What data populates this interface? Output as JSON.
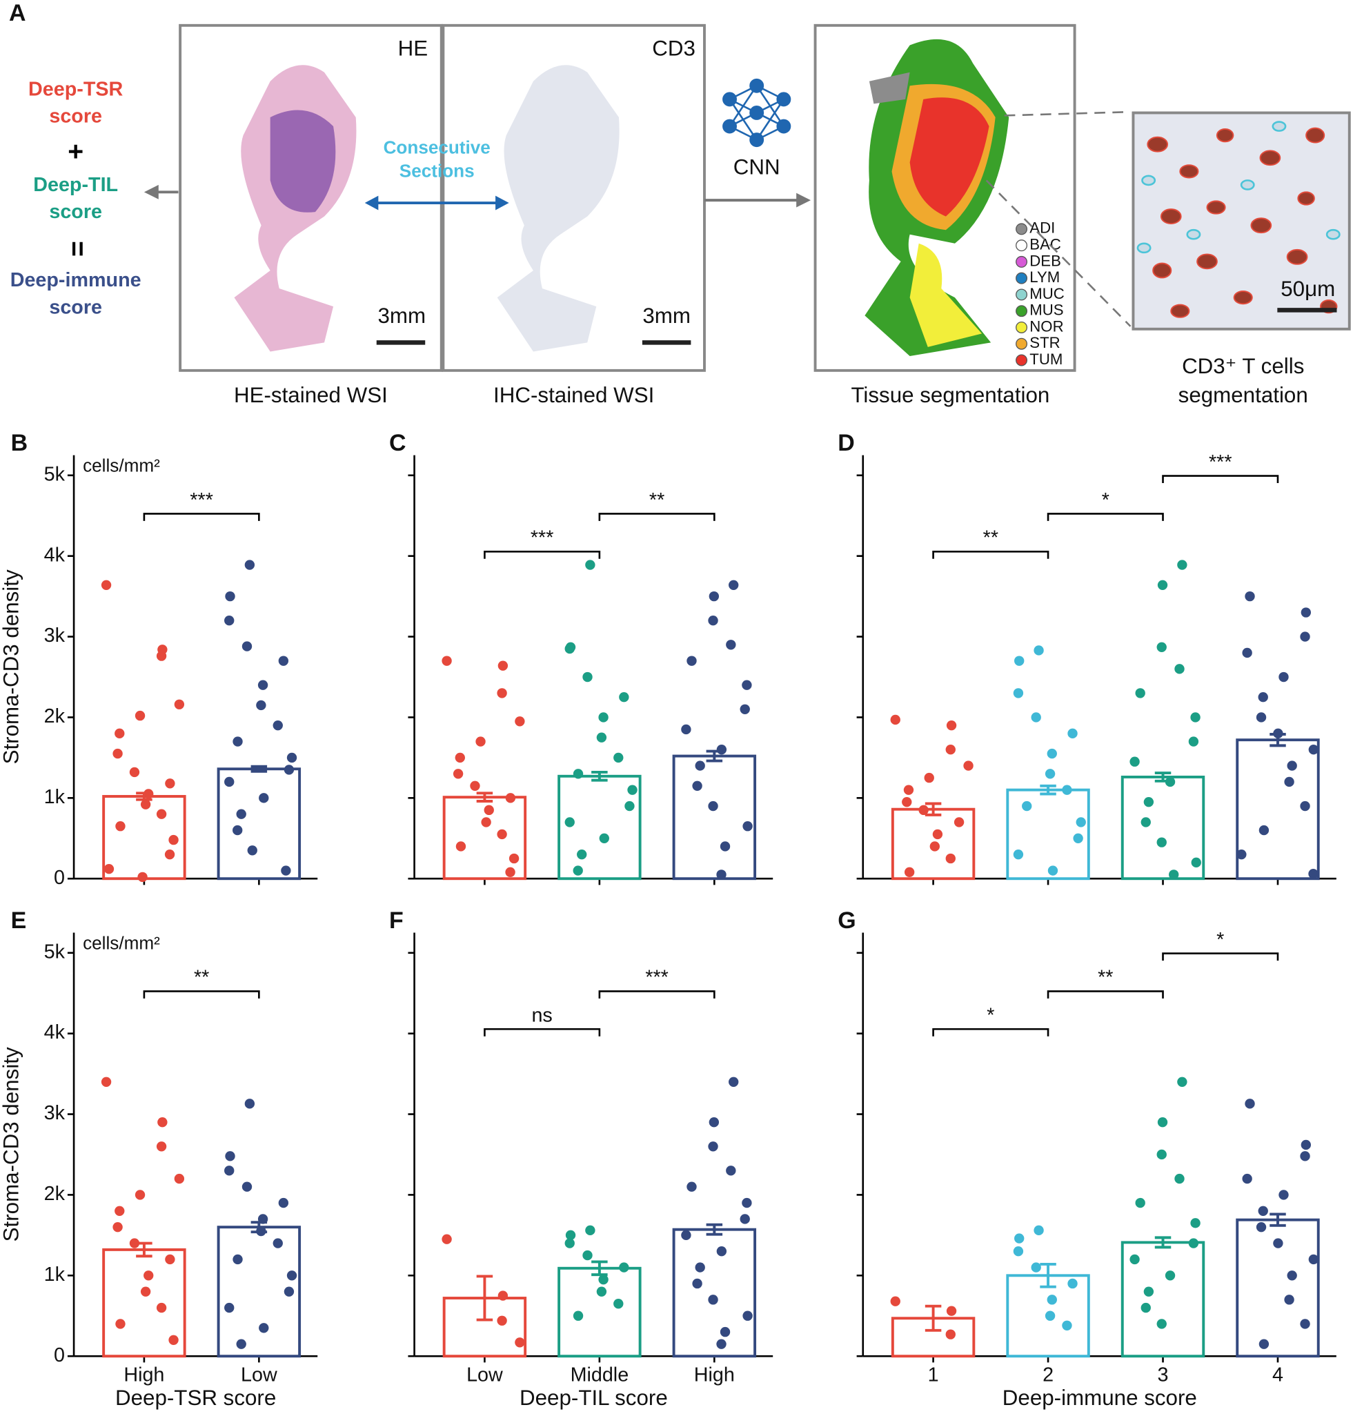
{
  "panel_a": {
    "letter": "A",
    "score_lines": [
      {
        "lines": [
          "Deep-TSR",
          "score"
        ],
        "color": "#e5483b"
      },
      {
        "lines": [
          "+"
        ],
        "color": "#000000"
      },
      {
        "lines": [
          "Deep-TIL",
          "score"
        ],
        "color": "#1b9e85"
      },
      {
        "lines": [
          "="
        ],
        "color": "#000000"
      },
      {
        "lines": [
          "Deep-immune",
          "score"
        ],
        "color": "#3a4f8a"
      }
    ],
    "he_label": "HE",
    "cd3_label": "CD3",
    "scale_he": "3mm",
    "scale_cd3": "3mm",
    "consecutive": [
      "Consecutive",
      "Sections"
    ],
    "cnn": "CNN",
    "legend": [
      {
        "name": "ADI",
        "color": "#8c8c8c"
      },
      {
        "name": "BAC",
        "color": "#ffffff"
      },
      {
        "name": "DEB",
        "color": "#d65ad6"
      },
      {
        "name": "LYM",
        "color": "#1f7fc0"
      },
      {
        "name": "MUC",
        "color": "#8fd3cf"
      },
      {
        "name": "MUS",
        "color": "#3aa12a"
      },
      {
        "name": "NOR",
        "color": "#f2ee3a"
      },
      {
        "name": "STR",
        "color": "#f0a92e"
      },
      {
        "name": "TUM",
        "color": "#e8332b"
      }
    ],
    "scale_cells": "50μm",
    "captions": [
      "HE-stained WSI",
      "IHC-stained WSI",
      "Tissue segmentation"
    ],
    "cell_caption": [
      "CD3⁺ T cells",
      "segmentation"
    ]
  },
  "chart_data": [
    {
      "type": "bar",
      "label": "B",
      "categories": [
        null,
        null
      ],
      "values": [
        1020,
        1360
      ],
      "errors": [
        40,
        30
      ],
      "colors": [
        "#e5483b",
        "#34497f"
      ],
      "points": [
        [
          3640,
          2840,
          2760,
          2160,
          2020,
          1800,
          1550,
          1320,
          1180,
          1050,
          920,
          800,
          650,
          480,
          300,
          120,
          20
        ],
        [
          3890,
          3500,
          3200,
          2880,
          2700,
          2400,
          2150,
          1900,
          1700,
          1500,
          1350,
          1200,
          1000,
          800,
          600,
          350,
          100
        ]
      ],
      "significance": [
        "***"
      ],
      "ylim": [
        0,
        5250
      ],
      "tick_labels": true,
      "yticks": [
        0,
        {
          "value": 1000,
          "label": "1k"
        },
        {
          "value": 2000,
          "label": "2k"
        },
        {
          "value": 3000,
          "label": "3k"
        },
        {
          "value": 4000,
          "label": "4k"
        },
        {
          "value": 5000,
          "label": "5k"
        }
      ],
      "ylabel": "Stroma-CD3 density",
      "unit": "cells/mm²"
    },
    {
      "type": "bar",
      "label": "C",
      "categories": [
        null,
        null,
        null
      ],
      "values": [
        1010,
        1270,
        1520
      ],
      "errors": [
        50,
        50,
        60
      ],
      "colors": [
        "#e5483b",
        "#1b9e85",
        "#34497f"
      ],
      "points": [
        [
          2700,
          2640,
          2300,
          1950,
          1700,
          1500,
          1300,
          1150,
          1000,
          850,
          700,
          550,
          400,
          250,
          80
        ],
        [
          3890,
          2870,
          2850,
          2500,
          2250,
          2000,
          1750,
          1500,
          1300,
          1100,
          900,
          700,
          500,
          300,
          100
        ],
        [
          3640,
          3500,
          3200,
          2900,
          2700,
          2400,
          2100,
          1850,
          1600,
          1400,
          1150,
          900,
          650,
          400,
          50
        ]
      ],
      "significance": [
        "***",
        "**"
      ],
      "ylim": [
        0,
        5250
      ],
      "tick_labels": false,
      "yticks": [
        0,
        1000,
        2000,
        3000,
        4000,
        5000
      ]
    },
    {
      "type": "bar",
      "label": "D",
      "categories": [
        null,
        null,
        null,
        null
      ],
      "values": [
        860,
        1100,
        1260,
        1720
      ],
      "errors": [
        70,
        50,
        50,
        70
      ],
      "colors": [
        "#e5483b",
        "#3fb8d6",
        "#1b9e85",
        "#34497f"
      ],
      "points": [
        [
          1970,
          1900,
          1600,
          1400,
          1250,
          1100,
          950,
          850,
          700,
          550,
          400,
          250,
          80
        ],
        [
          2830,
          2700,
          2300,
          2000,
          1800,
          1550,
          1300,
          1100,
          900,
          700,
          500,
          300,
          100
        ],
        [
          3890,
          3640,
          2870,
          2600,
          2300,
          2000,
          1700,
          1450,
          1200,
          950,
          700,
          450,
          200,
          50
        ],
        [
          3500,
          3300,
          3000,
          2800,
          2500,
          2250,
          2000,
          1800,
          1600,
          1400,
          1200,
          900,
          600,
          300,
          60
        ]
      ],
      "significance": [
        "**",
        "*",
        "***"
      ],
      "ylim": [
        0,
        5250
      ],
      "tick_labels": false,
      "yticks": [
        0,
        1000,
        2000,
        3000,
        4000,
        5000
      ]
    },
    {
      "type": "bar",
      "label": "E",
      "categories": [
        "High",
        "Low"
      ],
      "values": [
        1320,
        1600
      ],
      "errors": [
        80,
        60
      ],
      "colors": [
        "#e5483b",
        "#34497f"
      ],
      "points": [
        [
          3400,
          2900,
          2600,
          2200,
          2000,
          1800,
          1600,
          1400,
          1200,
          1000,
          800,
          600,
          400,
          200
        ],
        [
          3130,
          2480,
          2300,
          2100,
          1900,
          1700,
          1550,
          1400,
          1200,
          1000,
          800,
          600,
          350,
          150
        ]
      ],
      "significance": [
        "**"
      ],
      "ylim": [
        0,
        5250
      ],
      "tick_labels": true,
      "yticks": [
        0,
        {
          "value": 1000,
          "label": "1k"
        },
        {
          "value": 2000,
          "label": "2k"
        },
        {
          "value": 3000,
          "label": "3k"
        },
        {
          "value": 4000,
          "label": "4k"
        },
        {
          "value": 5000,
          "label": "5k"
        }
      ],
      "ylabel": "Stroma-CD3 density",
      "unit": "cells/mm²",
      "xlabel": "Deep-TSR score"
    },
    {
      "type": "bar",
      "label": "F",
      "categories": [
        "Low",
        "Middle",
        "High"
      ],
      "values": [
        720,
        1090,
        1570
      ],
      "errors": [
        270,
        80,
        60
      ],
      "colors": [
        "#e5483b",
        "#1b9e85",
        "#34497f"
      ],
      "points": [
        [
          1450,
          750,
          440,
          170
        ],
        [
          1560,
          1500,
          1400,
          1250,
          1100,
          950,
          800,
          650,
          500
        ],
        [
          3400,
          2900,
          2600,
          2300,
          2100,
          1900,
          1700,
          1500,
          1300,
          1100,
          900,
          700,
          500,
          300,
          150
        ]
      ],
      "significance": [
        "ns",
        "***"
      ],
      "ylim": [
        0,
        5250
      ],
      "tick_labels": false,
      "yticks": [
        0,
        1000,
        2000,
        3000,
        4000,
        5000
      ],
      "xlabel": "Deep-TIL score"
    },
    {
      "type": "bar",
      "label": "G",
      "categories": [
        1,
        2,
        3,
        4
      ],
      "values": [
        470,
        1000,
        1410,
        1690
      ],
      "errors": [
        150,
        140,
        60,
        70
      ],
      "colors": [
        "#e5483b",
        "#3fb8d6",
        "#1b9e85",
        "#34497f"
      ],
      "points": [
        [
          680,
          560,
          270
        ],
        [
          1560,
          1460,
          1300,
          1100,
          900,
          700,
          500,
          380
        ],
        [
          3400,
          2900,
          2500,
          2200,
          1900,
          1650,
          1400,
          1200,
          1000,
          800,
          600,
          400
        ],
        [
          3130,
          2620,
          2480,
          2200,
          2000,
          1800,
          1600,
          1400,
          1200,
          1000,
          700,
          400,
          150
        ]
      ],
      "significance": [
        "*",
        "**",
        "*"
      ],
      "ylim": [
        0,
        5250
      ],
      "tick_labels": false,
      "yticks": [
        0,
        1000,
        2000,
        3000,
        4000,
        5000
      ],
      "xlabel": "Deep-immune score"
    }
  ]
}
